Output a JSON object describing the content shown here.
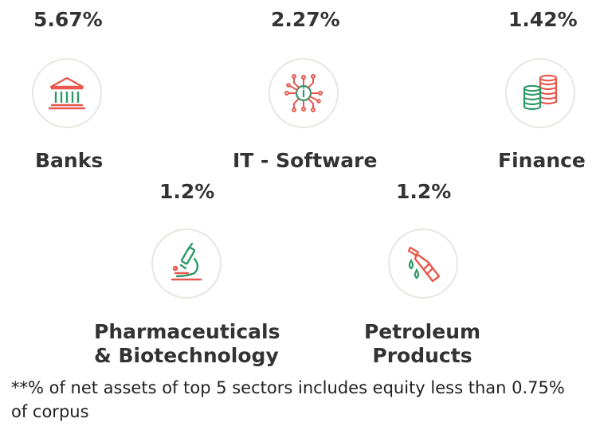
{
  "sectors": [
    {
      "percent": "5.67%",
      "name": "Banks",
      "icon": "bank-building-icon"
    },
    {
      "percent": "2.27%",
      "name": "IT - Software",
      "icon": "circuit-chip-icon"
    },
    {
      "percent": "1.42%",
      "name": "Finance",
      "icon": "coin-stacks-icon"
    },
    {
      "percent": "1.2%",
      "name_line1": "Pharmaceuticals",
      "name_line2": "& Biotechnology",
      "icon": "microscope-icon"
    },
    {
      "percent": "1.2%",
      "name_line1": "Petroleum",
      "name_line2": "Products",
      "icon": "fuel-nozzle-icon"
    }
  ],
  "footnote": "**% of net assets of top 5 sectors includes equity less than 0.75% of corpus",
  "colors": {
    "green": "#2e9a6a",
    "red": "#e8574e",
    "text": "#333333",
    "circle": "#e9e6e2"
  }
}
